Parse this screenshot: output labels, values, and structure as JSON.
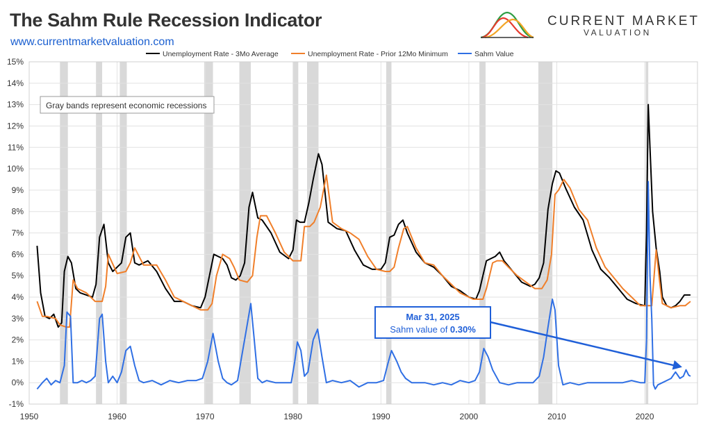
{
  "header": {
    "title": "The Sahm Rule Recession Indicator",
    "website": "www.currentmarketvaluation.com",
    "brand_name": "CURRENT MARKET",
    "brand_sub": "VALUATION"
  },
  "colors": {
    "three_mo_avg": "#000000",
    "prior_min": "#f07f2a",
    "sahm": "#2f6fe4",
    "recession_band": "#d9d9d9",
    "annotation": "#1f5fd8"
  },
  "chart_data": {
    "type": "line",
    "title": "The Sahm Rule Recession Indicator",
    "xlabel": "",
    "ylabel": "",
    "xlim": [
      1950,
      2026
    ],
    "ylim": [
      -1,
      15
    ],
    "grid": true,
    "legend_position": "top",
    "x_ticks": [
      1950,
      1960,
      1970,
      1980,
      1990,
      2000,
      2010,
      2020
    ],
    "y_ticks": [
      -1,
      0,
      1,
      2,
      3,
      4,
      5,
      6,
      7,
      8,
      9,
      10,
      11,
      12,
      13,
      14,
      15
    ],
    "y_tick_suffix": "%",
    "recessions": [
      [
        1953.5,
        1954.4
      ],
      [
        1957.6,
        1958.3
      ],
      [
        1960.3,
        1961.1
      ],
      [
        1969.9,
        1970.9
      ],
      [
        1973.9,
        1975.2
      ],
      [
        1980.0,
        1980.6
      ],
      [
        1981.6,
        1982.9
      ],
      [
        1990.6,
        1991.2
      ],
      [
        2001.2,
        2001.9
      ],
      [
        2007.9,
        2009.5
      ],
      [
        2020.1,
        2020.4
      ]
    ],
    "band_note": "Gray bands represent economic recessions",
    "series": [
      {
        "name": "Unemployment Rate - 3Mo Average",
        "color": "#000000",
        "x": [
          1950.9,
          1951.3,
          1951.8,
          1952.3,
          1952.8,
          1953.3,
          1953.7,
          1954.0,
          1954.4,
          1954.8,
          1955.3,
          1955.8,
          1956.5,
          1957.2,
          1957.6,
          1958.0,
          1958.5,
          1959.0,
          1959.5,
          1960.0,
          1960.5,
          1961.0,
          1961.5,
          1962.0,
          1962.5,
          1963.5,
          1964.5,
          1965.5,
          1966.5,
          1967.5,
          1968.5,
          1969.5,
          1970.0,
          1970.5,
          1971.0,
          1971.5,
          1972.0,
          1972.5,
          1973.0,
          1973.5,
          1974.0,
          1974.5,
          1975.0,
          1975.4,
          1976.0,
          1976.5,
          1977.5,
          1978.5,
          1979.5,
          1980.0,
          1980.4,
          1980.8,
          1981.3,
          1981.8,
          1982.3,
          1982.9,
          1983.3,
          1984.0,
          1985.0,
          1986.0,
          1987.0,
          1988.0,
          1989.0,
          1990.0,
          1990.5,
          1991.0,
          1991.5,
          1992.0,
          1992.5,
          1993.0,
          1994.0,
          1995.0,
          1996.0,
          1997.0,
          1998.0,
          1999.0,
          2000.0,
          2000.8,
          2001.2,
          2001.6,
          2002.0,
          2002.5,
          2003.0,
          2003.5,
          2004.0,
          2005.0,
          2006.0,
          2007.0,
          2007.5,
          2008.0,
          2008.5,
          2009.0,
          2009.5,
          2009.9,
          2010.3,
          2011.0,
          2012.0,
          2013.0,
          2014.0,
          2015.0,
          2016.0,
          2017.0,
          2018.0,
          2019.0,
          2020.0,
          2020.2,
          2020.4,
          2020.6,
          2020.9,
          2021.3,
          2021.7,
          2022.0,
          2022.5,
          2023.0,
          2023.5,
          2024.0,
          2024.5,
          2025.2
        ],
        "values": [
          6.4,
          4.2,
          3.1,
          3.0,
          3.2,
          2.6,
          2.8,
          5.2,
          5.9,
          5.6,
          4.4,
          4.2,
          4.1,
          4.0,
          4.6,
          6.8,
          7.4,
          5.6,
          5.2,
          5.4,
          5.6,
          6.8,
          7.0,
          5.6,
          5.5,
          5.7,
          5.2,
          4.4,
          3.8,
          3.8,
          3.6,
          3.5,
          4.0,
          5.0,
          6.0,
          5.9,
          5.8,
          5.5,
          4.9,
          4.8,
          5.0,
          5.6,
          8.2,
          8.9,
          7.7,
          7.6,
          7.0,
          6.1,
          5.8,
          6.2,
          7.6,
          7.5,
          7.5,
          8.4,
          9.5,
          10.7,
          10.2,
          7.5,
          7.2,
          7.1,
          6.2,
          5.5,
          5.3,
          5.3,
          5.6,
          6.8,
          6.9,
          7.4,
          7.6,
          7.0,
          6.1,
          5.6,
          5.4,
          5.0,
          4.5,
          4.3,
          4.0,
          3.9,
          4.3,
          5.0,
          5.7,
          5.8,
          5.9,
          6.1,
          5.7,
          5.2,
          4.7,
          4.5,
          4.6,
          4.9,
          5.6,
          8.1,
          9.3,
          9.9,
          9.8,
          9.1,
          8.2,
          7.6,
          6.2,
          5.3,
          4.9,
          4.4,
          3.9,
          3.7,
          3.6,
          7.0,
          13.0,
          11.0,
          8.0,
          6.3,
          5.2,
          4.0,
          3.6,
          3.5,
          3.6,
          3.8,
          4.1,
          4.1
        ]
      },
      {
        "name": "Unemployment Rate - Prior 12Mo Minimum",
        "color": "#f07f2a",
        "x": [
          1950.9,
          1951.5,
          1952.0,
          1953.0,
          1953.5,
          1954.2,
          1954.6,
          1955.0,
          1955.5,
          1956.5,
          1957.5,
          1958.3,
          1958.7,
          1959.0,
          1960.0,
          1961.0,
          1961.5,
          1962.0,
          1963.0,
          1964.5,
          1965.5,
          1966.5,
          1968.0,
          1969.5,
          1970.3,
          1970.8,
          1971.3,
          1972.0,
          1972.8,
          1973.3,
          1973.9,
          1974.8,
          1975.4,
          1975.9,
          1976.3,
          1977.0,
          1978.0,
          1979.0,
          1980.0,
          1980.4,
          1980.9,
          1981.3,
          1981.9,
          1982.4,
          1983.1,
          1983.8,
          1984.5,
          1985.5,
          1986.5,
          1987.5,
          1988.5,
          1989.5,
          1990.5,
          1991.0,
          1991.5,
          1992.0,
          1992.6,
          1993.0,
          1994.0,
          1995.0,
          1996.0,
          1997.0,
          1998.0,
          1999.0,
          2000.5,
          2001.6,
          2002.0,
          2002.7,
          2003.2,
          2003.8,
          2004.5,
          2005.5,
          2006.5,
          2007.5,
          2008.3,
          2008.9,
          2009.4,
          2009.8,
          2010.2,
          2010.8,
          2011.5,
          2012.5,
          2013.5,
          2014.5,
          2015.5,
          2016.5,
          2017.5,
          2018.5,
          2019.5,
          2020.8,
          2021.3,
          2021.7,
          2022.0,
          2023.0,
          2024.0,
          2024.6,
          2025.2
        ],
        "values": [
          3.8,
          3.1,
          3.1,
          3.0,
          2.7,
          2.6,
          2.6,
          4.8,
          4.4,
          4.2,
          3.8,
          3.8,
          4.5,
          6.0,
          5.1,
          5.2,
          5.6,
          6.3,
          5.5,
          5.5,
          4.8,
          4.0,
          3.7,
          3.4,
          3.4,
          3.7,
          5.0,
          6.0,
          5.8,
          5.4,
          4.8,
          4.7,
          5.0,
          6.8,
          7.8,
          7.8,
          7.0,
          6.1,
          5.7,
          5.7,
          5.7,
          7.3,
          7.3,
          7.5,
          8.2,
          9.7,
          7.5,
          7.2,
          7.0,
          6.7,
          5.9,
          5.3,
          5.2,
          5.2,
          5.4,
          6.3,
          7.2,
          7.3,
          6.3,
          5.6,
          5.5,
          5.0,
          4.6,
          4.2,
          3.9,
          3.9,
          4.4,
          5.6,
          5.7,
          5.7,
          5.4,
          5.0,
          4.7,
          4.4,
          4.4,
          4.8,
          6.0,
          8.8,
          9.0,
          9.5,
          9.1,
          8.1,
          7.6,
          6.3,
          5.4,
          4.9,
          4.4,
          4.0,
          3.6,
          3.6,
          6.2,
          4.7,
          3.7,
          3.5,
          3.6,
          3.6,
          3.8
        ]
      },
      {
        "name": "Sahm Value",
        "color": "#2f6fe4",
        "x": [
          1950.9,
          1951.5,
          1952.0,
          1952.5,
          1953.0,
          1953.5,
          1954.0,
          1954.3,
          1954.7,
          1955.0,
          1955.5,
          1956.0,
          1956.5,
          1957.0,
          1957.5,
          1958.0,
          1958.3,
          1958.7,
          1959.0,
          1959.5,
          1960.0,
          1960.5,
          1961.0,
          1961.5,
          1962.0,
          1962.5,
          1963.0,
          1964.0,
          1965.0,
          1966.0,
          1967.0,
          1968.0,
          1969.0,
          1969.7,
          1970.3,
          1970.9,
          1971.5,
          1972.0,
          1972.5,
          1973.0,
          1973.7,
          1974.2,
          1974.7,
          1975.2,
          1975.6,
          1976.0,
          1976.5,
          1977.0,
          1978.0,
          1979.0,
          1979.8,
          1980.2,
          1980.5,
          1980.9,
          1981.3,
          1981.7,
          1982.3,
          1982.8,
          1983.3,
          1983.8,
          1984.5,
          1985.5,
          1986.5,
          1987.5,
          1988.5,
          1989.5,
          1990.3,
          1990.8,
          1991.2,
          1991.8,
          1992.3,
          1992.8,
          1993.5,
          1995.0,
          1996.0,
          1997.0,
          1998.0,
          1999.0,
          2000.0,
          2000.7,
          2001.2,
          2001.7,
          2002.2,
          2002.7,
          2003.5,
          2004.5,
          2005.5,
          2006.5,
          2007.3,
          2008.0,
          2008.5,
          2009.0,
          2009.5,
          2009.8,
          2010.2,
          2010.7,
          2011.5,
          2012.5,
          2013.5,
          2014.5,
          2015.5,
          2016.5,
          2017.5,
          2018.5,
          2019.5,
          2020.0,
          2020.2,
          2020.4,
          2020.6,
          2020.8,
          2021.0,
          2021.2,
          2021.5,
          2022.0,
          2022.5,
          2023.0,
          2023.5,
          2024.0,
          2024.4,
          2024.7,
          2025.0,
          2025.2
        ],
        "values": [
          -0.3,
          0.0,
          0.2,
          -0.1,
          0.1,
          0.0,
          0.8,
          3.3,
          3.1,
          0.0,
          0.0,
          0.1,
          0.0,
          0.1,
          0.3,
          3.0,
          3.2,
          1.0,
          0.0,
          0.3,
          0.0,
          0.5,
          1.5,
          1.7,
          0.8,
          0.1,
          0.0,
          0.1,
          -0.1,
          0.1,
          0.0,
          0.1,
          0.1,
          0.2,
          1.0,
          2.3,
          1.0,
          0.2,
          0.0,
          -0.1,
          0.1,
          1.3,
          2.5,
          3.7,
          2.0,
          0.2,
          0.0,
          0.1,
          0.0,
          0.0,
          0.0,
          1.0,
          1.9,
          1.5,
          0.3,
          0.5,
          2.0,
          2.5,
          1.2,
          0.0,
          0.1,
          0.0,
          0.1,
          -0.2,
          0.0,
          0.0,
          0.1,
          0.9,
          1.5,
          1.0,
          0.5,
          0.2,
          0.0,
          0.0,
          -0.1,
          0.0,
          -0.1,
          0.1,
          0.0,
          0.1,
          0.5,
          1.6,
          1.2,
          0.6,
          0.0,
          -0.1,
          0.0,
          0.0,
          0.0,
          0.3,
          1.2,
          2.6,
          3.9,
          3.4,
          0.8,
          -0.1,
          0.0,
          -0.1,
          0.0,
          0.0,
          0.0,
          0.0,
          0.0,
          0.1,
          0.0,
          0.0,
          2.0,
          9.4,
          5.0,
          3.0,
          -0.1,
          -0.3,
          -0.1,
          0.0,
          0.1,
          0.2,
          0.5,
          0.2,
          0.3,
          0.6,
          0.35,
          0.3
        ]
      }
    ],
    "annotation": {
      "date": "Mar 31, 2025",
      "text_prefix": "Sahm value of",
      "value_text": "0.30%",
      "x": 2025.2,
      "y": 0.6
    }
  }
}
